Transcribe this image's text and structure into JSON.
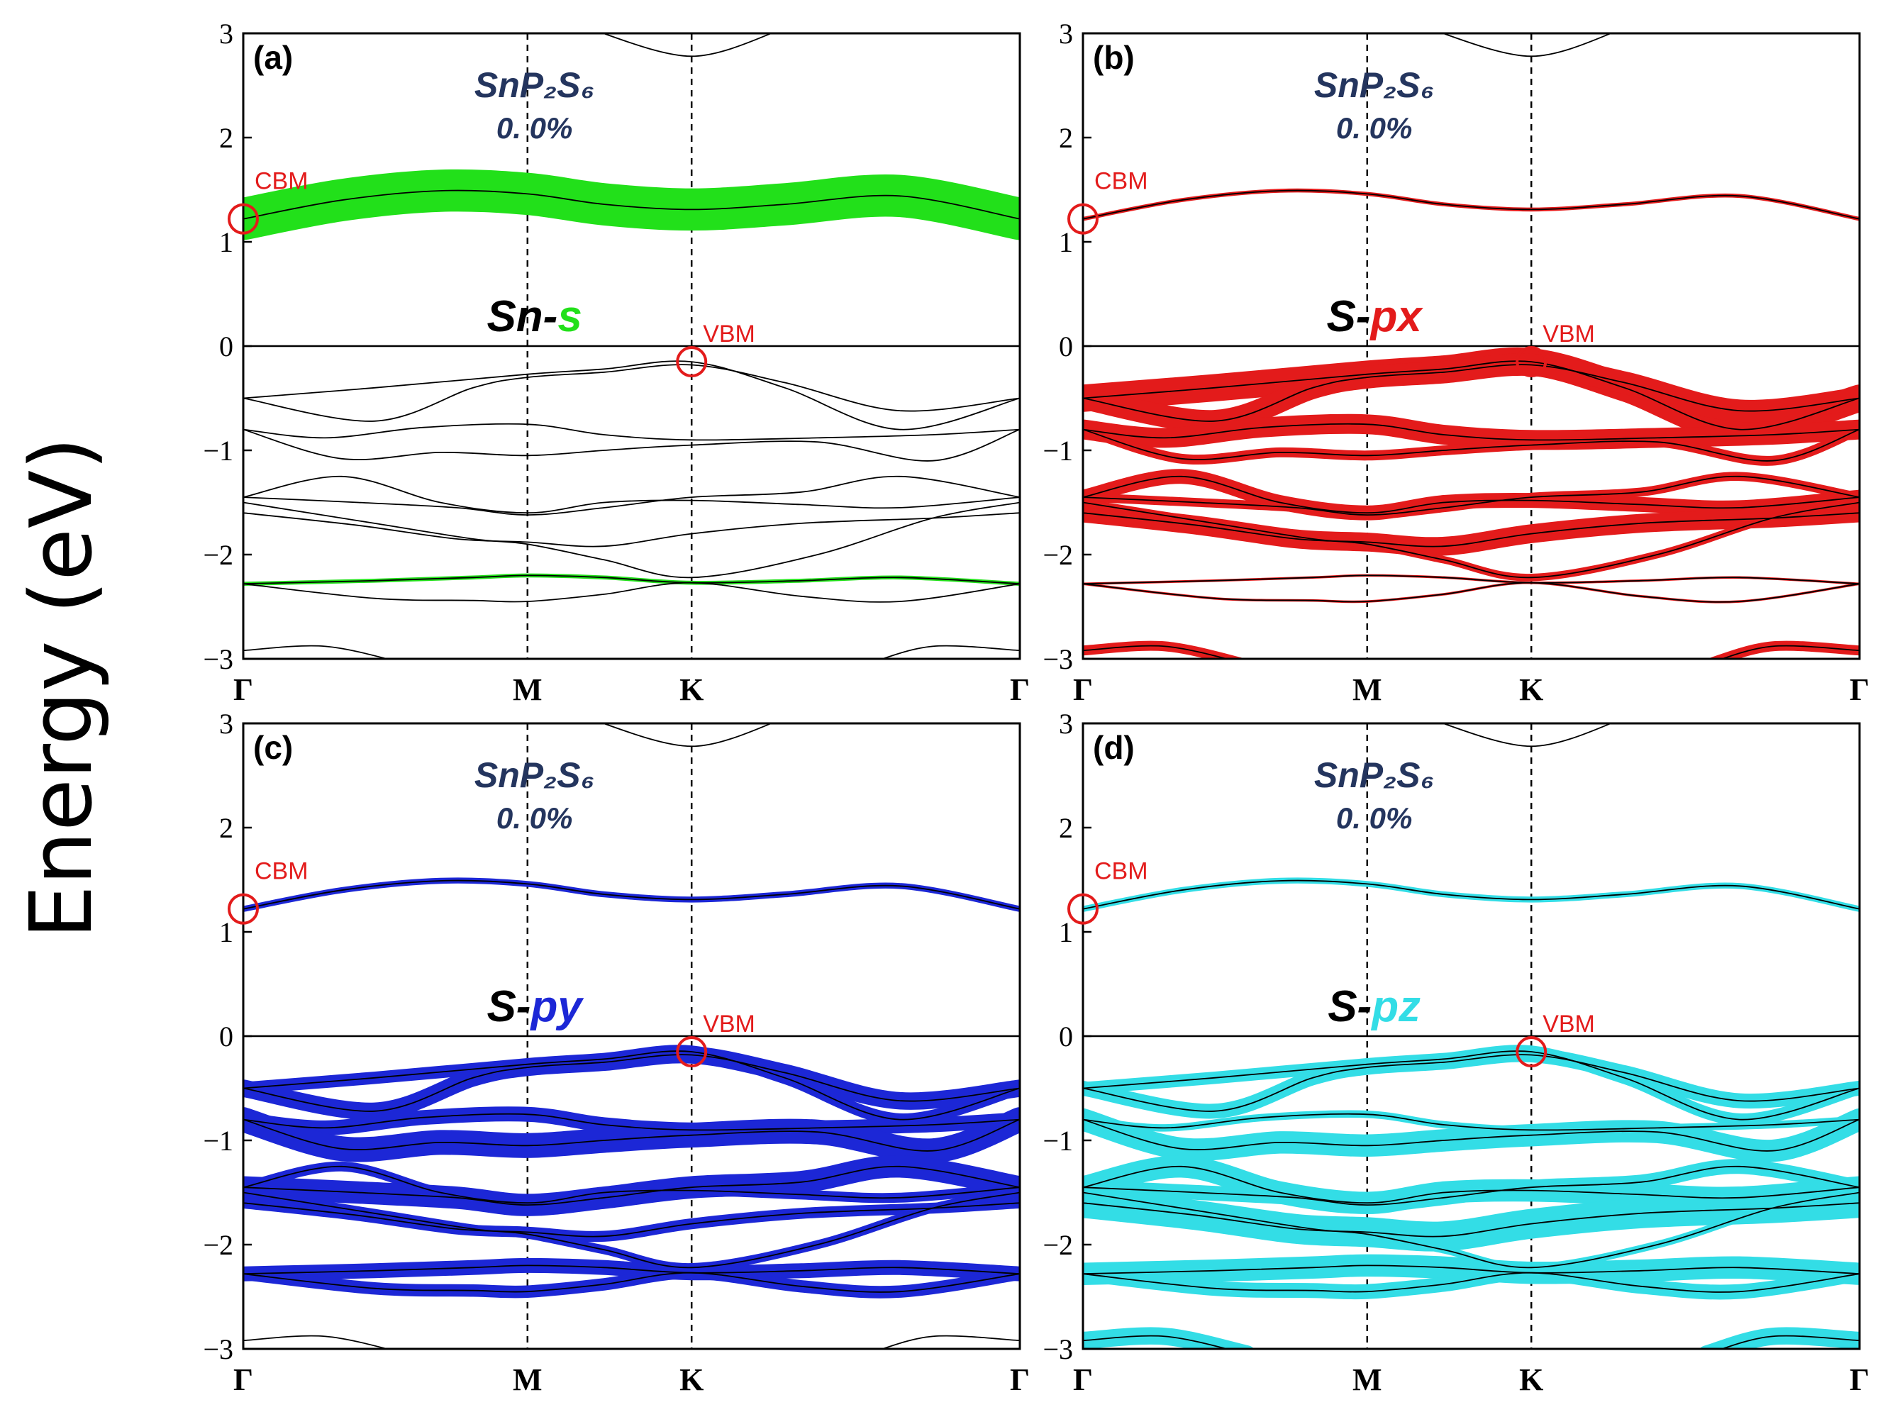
{
  "chart_data": {
    "type": "line",
    "ylabel": "Energy (eV)",
    "ylim": [
      -3,
      3
    ],
    "yticks": [
      "3",
      "2",
      "1",
      "0",
      "−1",
      "−2",
      "−3"
    ],
    "kpath": [
      "Γ",
      "M",
      "K",
      "Γ"
    ],
    "kpath_positions": [
      0,
      1.732,
      2.732,
      4.732
    ],
    "colors": {
      "cbm_vbm_marker": "#e31b1b",
      "band_line": "#000000",
      "annotation": "#24355e"
    },
    "markers": {
      "cbm": {
        "label": "CBM",
        "k": 0,
        "energy": 1.22
      },
      "vbm": {
        "label": "VBM",
        "k": 2.732,
        "energy": -0.15
      }
    },
    "bands": [
      [
        [
          0,
          1.22
        ],
        [
          0.6,
          1.4
        ],
        [
          1.2,
          1.49
        ],
        [
          1.732,
          1.46
        ],
        [
          2.2,
          1.36
        ],
        [
          2.732,
          1.31
        ],
        [
          3.3,
          1.36
        ],
        [
          4.0,
          1.44
        ],
        [
          4.732,
          1.22
        ]
      ],
      [
        [
          0,
          -0.5
        ],
        [
          0.8,
          -0.4
        ],
        [
          1.732,
          -0.27
        ],
        [
          2.2,
          -0.22
        ],
        [
          2.732,
          -0.15
        ],
        [
          3.3,
          -0.4
        ],
        [
          4.0,
          -0.8
        ],
        [
          4.732,
          -0.5
        ]
      ],
      [
        [
          0,
          -0.5
        ],
        [
          0.8,
          -0.72
        ],
        [
          1.4,
          -0.4
        ],
        [
          1.732,
          -0.3
        ],
        [
          2.2,
          -0.25
        ],
        [
          2.732,
          -0.18
        ],
        [
          3.3,
          -0.35
        ],
        [
          4.0,
          -0.62
        ],
        [
          4.732,
          -0.5
        ]
      ],
      [
        [
          0,
          -0.8
        ],
        [
          0.5,
          -0.88
        ],
        [
          1.1,
          -0.78
        ],
        [
          1.732,
          -0.75
        ],
        [
          2.2,
          -0.85
        ],
        [
          2.732,
          -0.9
        ],
        [
          3.5,
          -0.88
        ],
        [
          4.2,
          -0.85
        ],
        [
          4.732,
          -0.8
        ]
      ],
      [
        [
          0,
          -0.8
        ],
        [
          0.6,
          -1.08
        ],
        [
          1.2,
          -1.02
        ],
        [
          1.732,
          -1.05
        ],
        [
          2.2,
          -1.0
        ],
        [
          2.732,
          -0.95
        ],
        [
          3.5,
          -0.92
        ],
        [
          4.2,
          -1.1
        ],
        [
          4.732,
          -0.8
        ]
      ],
      [
        [
          0,
          -1.45
        ],
        [
          0.6,
          -1.25
        ],
        [
          1.2,
          -1.5
        ],
        [
          1.732,
          -1.6
        ],
        [
          2.2,
          -1.5
        ],
        [
          2.732,
          -1.48
        ],
        [
          3.4,
          -1.52
        ],
        [
          4.0,
          -1.55
        ],
        [
          4.732,
          -1.45
        ]
      ],
      [
        [
          0,
          -1.45
        ],
        [
          0.7,
          -1.5
        ],
        [
          1.3,
          -1.55
        ],
        [
          1.732,
          -1.62
        ],
        [
          2.2,
          -1.55
        ],
        [
          2.732,
          -1.45
        ],
        [
          3.4,
          -1.4
        ],
        [
          4.0,
          -1.25
        ],
        [
          4.732,
          -1.45
        ]
      ],
      [
        [
          0,
          -1.6
        ],
        [
          0.7,
          -1.72
        ],
        [
          1.3,
          -1.85
        ],
        [
          1.732,
          -1.88
        ],
        [
          2.2,
          -1.92
        ],
        [
          2.732,
          -1.8
        ],
        [
          3.4,
          -1.7
        ],
        [
          4.2,
          -1.65
        ],
        [
          4.732,
          -1.6
        ]
      ],
      [
        [
          0,
          -1.5
        ],
        [
          0.8,
          -1.7
        ],
        [
          1.4,
          -1.85
        ],
        [
          1.732,
          -1.9
        ],
        [
          2.2,
          -2.05
        ],
        [
          2.732,
          -2.22
        ],
        [
          3.5,
          -2.0
        ],
        [
          4.2,
          -1.65
        ],
        [
          4.732,
          -1.5
        ]
      ],
      [
        [
          0,
          -2.28
        ],
        [
          0.8,
          -2.25
        ],
        [
          1.4,
          -2.22
        ],
        [
          1.732,
          -2.2
        ],
        [
          2.2,
          -2.22
        ],
        [
          2.732,
          -2.27
        ],
        [
          3.4,
          -2.25
        ],
        [
          4.0,
          -2.22
        ],
        [
          4.732,
          -2.28
        ]
      ],
      [
        [
          0,
          -2.28
        ],
        [
          0.8,
          -2.42
        ],
        [
          1.4,
          -2.44
        ],
        [
          1.732,
          -2.45
        ],
        [
          2.2,
          -2.38
        ],
        [
          2.732,
          -2.27
        ],
        [
          3.4,
          -2.4
        ],
        [
          4.0,
          -2.45
        ],
        [
          4.732,
          -2.28
        ]
      ],
      [
        [
          0,
          -2.92
        ],
        [
          0.5,
          -2.88
        ],
        [
          1.0,
          -3.05
        ]
      ],
      [
        [
          3.8,
          -3.05
        ],
        [
          4.2,
          -2.88
        ],
        [
          4.732,
          -2.92
        ]
      ],
      [
        [
          2.1,
          3.05
        ],
        [
          2.732,
          2.78
        ],
        [
          3.3,
          3.05
        ]
      ]
    ],
    "panels": [
      {
        "label": "(a)",
        "material": "SnP₂S₆",
        "strain": "0. 0%",
        "atom": "Sn-",
        "orbital": "s",
        "color": "#22e01a",
        "weights": [
          0.85,
          0,
          0,
          0,
          0,
          0,
          0,
          0,
          0,
          0.08,
          0,
          0,
          0,
          0
        ]
      },
      {
        "label": "(b)",
        "material": "SnP₂S₆",
        "strain": "0. 0%",
        "atom": "S-",
        "orbital": "px",
        "color": "#e31b1b",
        "weights": [
          0.08,
          0.55,
          0.45,
          0.4,
          0.2,
          0.3,
          0.18,
          0.38,
          0.15,
          0.05,
          0.05,
          0.2,
          0.2,
          0
        ]
      },
      {
        "label": "(c)",
        "material": "SnP₂S₆",
        "strain": "0. 0%",
        "atom": "S-",
        "orbital": "py",
        "color": "#1c27d6",
        "weights": [
          0.12,
          0.25,
          0.35,
          0.3,
          0.5,
          0.2,
          0.45,
          0.22,
          0.18,
          0.3,
          0.25,
          0,
          0,
          0
        ]
      },
      {
        "label": "(d)",
        "material": "SnP₂S₆",
        "strain": "0. 0%",
        "atom": "S-",
        "orbital": "pz",
        "color": "#33dde6",
        "weights": [
          0.12,
          0.25,
          0.3,
          0.15,
          0.45,
          0.45,
          0.3,
          0.6,
          0.15,
          0.45,
          0.3,
          0.35,
          0.35,
          0
        ]
      }
    ]
  }
}
